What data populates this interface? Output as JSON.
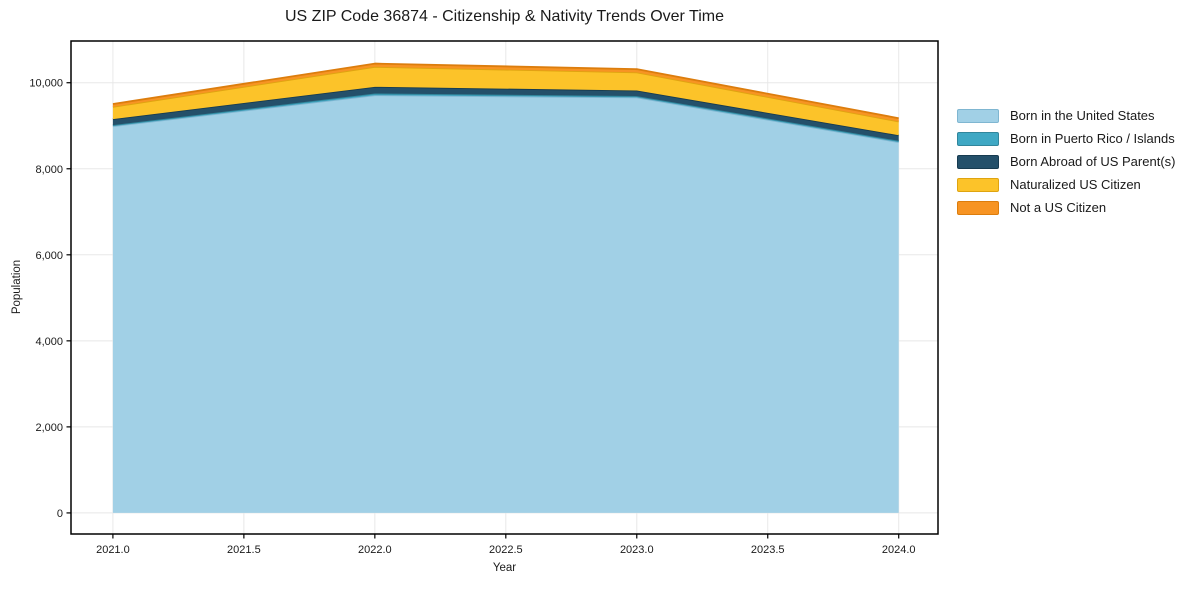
{
  "title": "US ZIP Code 36874 - Citizenship & Nativity Trends Over Time",
  "colors": {
    "background": "#ffffff",
    "text": "#1a1a1a",
    "grid": "#e8e8e8",
    "spine": "#000000"
  },
  "chart_data": {
    "type": "area",
    "stacked": true,
    "title": "US ZIP Code 36874 - Citizenship & Nativity Trends Over Time",
    "xlabel": "Year",
    "ylabel": "Population",
    "grid": true,
    "legend_position": "right-outside",
    "x": [
      2021,
      2022,
      2023,
      2024
    ],
    "series": [
      {
        "name": "Born in the United States",
        "fill": "#A1D0E6",
        "edge": "#7FB6D1",
        "values": [
          8990,
          9710,
          9660,
          8620
        ]
      },
      {
        "name": "Born in Puerto Rico / Islands",
        "fill": "#3FA8C4",
        "edge": "#31869C",
        "values": [
          25,
          40,
          30,
          30
        ]
      },
      {
        "name": "Born Abroad of US Parent(s)",
        "fill": "#24506A",
        "edge": "#173B50",
        "values": [
          140,
          155,
          130,
          130
        ]
      },
      {
        "name": "Naturalized US Citizen",
        "fill": "#FCC329",
        "edge": "#DFA410",
        "values": [
          285,
          465,
          420,
          320
        ]
      },
      {
        "name": "Not a US Citizen",
        "fill": "#F79423",
        "edge": "#DC7D0D",
        "values": [
          65,
          75,
          75,
          75
        ]
      }
    ],
    "xlim": [
      2020.84,
      2024.15
    ],
    "ylim": [
      -490,
      10970
    ],
    "xticks": {
      "values": [
        2021.0,
        2021.5,
        2022.0,
        2022.5,
        2023.0,
        2023.5,
        2024.0
      ],
      "labels": [
        "2021.0",
        "2021.5",
        "2022.0",
        "2022.5",
        "2023.0",
        "2023.5",
        "2024.0"
      ]
    },
    "yticks": {
      "values": [
        0,
        2000,
        4000,
        6000,
        8000,
        10000
      ],
      "labels": [
        "0",
        "2,000",
        "4,000",
        "6,000",
        "8,000",
        "10,000"
      ]
    }
  }
}
